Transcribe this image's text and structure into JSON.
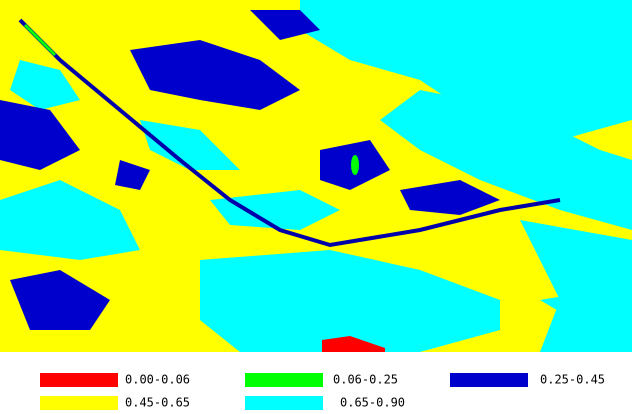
{
  "legend": {
    "items": [
      {
        "label": "0.00-0.06",
        "color": "#ff0000"
      },
      {
        "label": "0.06-0.25",
        "color": "#00ff00"
      },
      {
        "label": "0.25-0.45",
        "color": "#0000cc"
      },
      {
        "label": "0.45-0.65",
        "color": "#ffff00"
      },
      {
        "label": "0.65-0.90",
        "color": "#00ffff"
      }
    ]
  }
}
